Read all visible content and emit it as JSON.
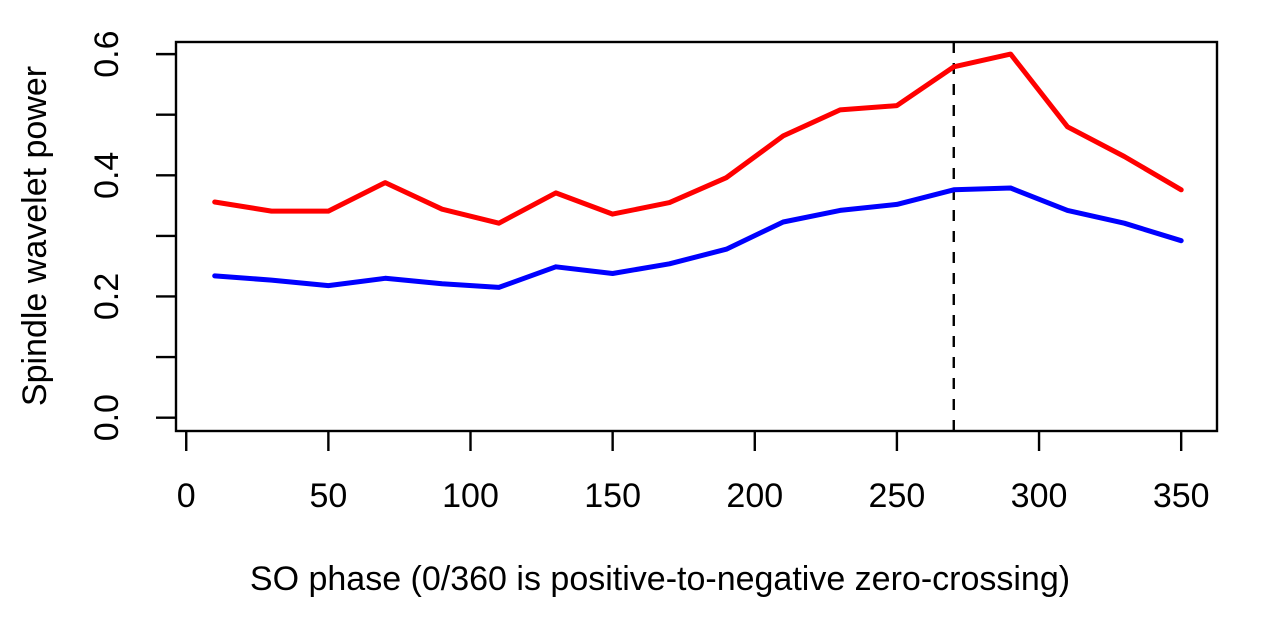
{
  "figure": {
    "title": "",
    "xlabel": "SO phase (0/360 is positive-to-negative zero-crossing)",
    "ylabel": "Spindle wavelet power"
  },
  "chart_data": {
    "type": "line",
    "title": "",
    "xlabel": "SO phase (0/360 is positive-to-negative zero-crossing)",
    "ylabel": "Spindle wavelet power",
    "x": [
      10,
      30,
      50,
      70,
      90,
      110,
      130,
      150,
      170,
      190,
      210,
      230,
      250,
      270,
      290,
      310,
      330,
      350
    ],
    "series": [
      {
        "name": "red-line",
        "color": "#ff0000",
        "values": [
          0.356,
          0.341,
          0.341,
          0.388,
          0.344,
          0.321,
          0.371,
          0.336,
          0.355,
          0.396,
          0.465,
          0.508,
          0.515,
          0.579,
          0.6,
          0.48,
          0.431,
          0.376
        ]
      },
      {
        "name": "blue-line",
        "color": "#0000ff",
        "values": [
          0.234,
          0.227,
          0.218,
          0.23,
          0.221,
          0.215,
          0.249,
          0.238,
          0.254,
          0.278,
          0.323,
          0.342,
          0.352,
          0.376,
          0.379,
          0.342,
          0.321,
          0.292
        ]
      }
    ],
    "x_ticks": {
      "values": [
        0,
        50,
        100,
        150,
        200,
        250,
        300,
        350
      ],
      "labels": [
        "0",
        "50",
        "100",
        "150",
        "200",
        "250",
        "300",
        "350"
      ]
    },
    "y_ticks": {
      "values": [
        0.0,
        0.2,
        0.4,
        0.6
      ],
      "labels": [
        "0.0",
        "0.2",
        "0.4",
        "0.6"
      ],
      "minor": [
        0.1,
        0.3,
        0.5
      ]
    },
    "xlim": [
      -3.6,
      362.6
    ],
    "ylim": [
      -0.022,
      0.62
    ],
    "vline": {
      "x": 270,
      "style": "dashed",
      "color": "#000000"
    },
    "grid": false,
    "legend": false,
    "axis_color": "#000000",
    "background": "#ffffff"
  }
}
